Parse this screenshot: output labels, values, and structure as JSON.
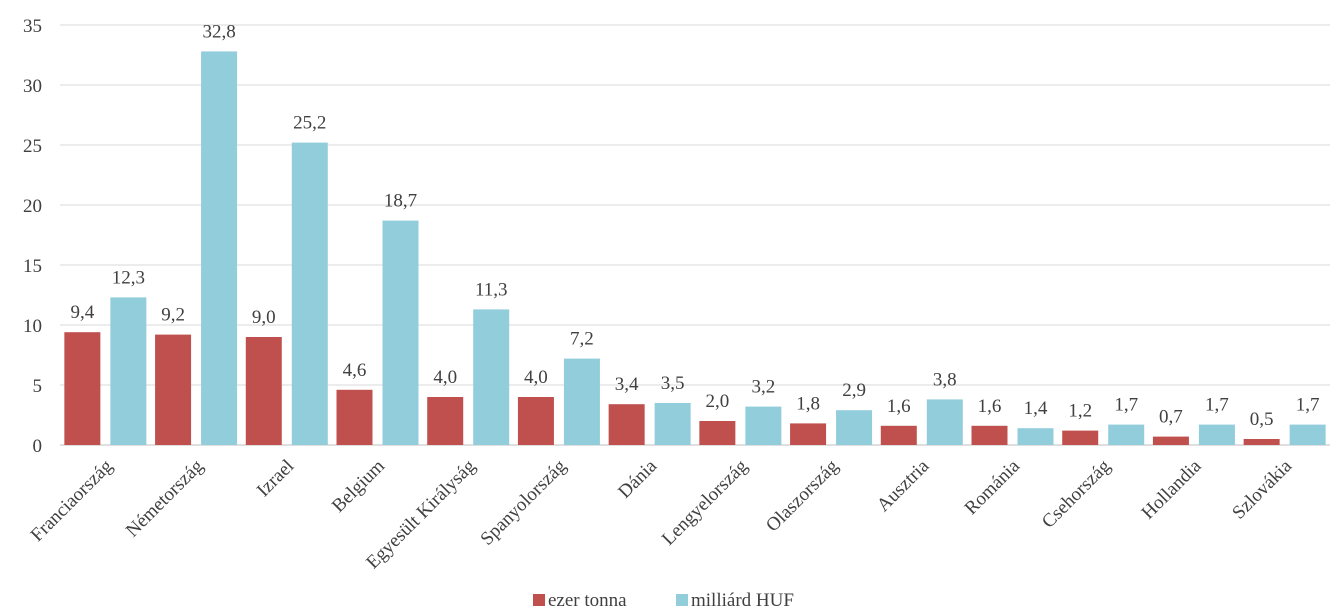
{
  "chart_data": {
    "type": "bar",
    "categories": [
      "Franciaország",
      "Németország",
      "Izrael",
      "Belgium",
      "Egyesült Királyság",
      "Spanyolország",
      "Dánia",
      "Lengyelország",
      "Olaszország",
      "Ausztria",
      "Románia",
      "Csehország",
      "Hollandia",
      "Szlovákia"
    ],
    "series": [
      {
        "name": "ezer tonna",
        "color": "#c0504d",
        "values": [
          9.4,
          9.2,
          9.0,
          4.6,
          4.0,
          4.0,
          3.4,
          2.0,
          1.8,
          1.6,
          1.6,
          1.2,
          0.7,
          0.5
        ],
        "labels": [
          "9,4",
          "9,2",
          "9,0",
          "4,6",
          "4,0",
          "4,0",
          "3,4",
          "2,0",
          "1,8",
          "1,6",
          "1,6",
          "1,2",
          "0,7",
          "0,5"
        ]
      },
      {
        "name": "milliárd HUF",
        "color": "#92cddc",
        "values": [
          12.3,
          32.8,
          25.2,
          18.7,
          11.3,
          7.2,
          3.5,
          3.2,
          2.9,
          3.8,
          1.4,
          1.7,
          1.7,
          1.7
        ],
        "labels": [
          "12,3",
          "32,8",
          "25,2",
          "18,7",
          "11,3",
          "7,2",
          "3,5",
          "3,2",
          "2,9",
          "3,8",
          "1,4",
          "1,7",
          "1,7",
          "1,7"
        ]
      }
    ],
    "ylim": [
      0,
      35
    ],
    "yticks": [
      0,
      5,
      10,
      15,
      20,
      25,
      30,
      35
    ],
    "grid": true,
    "legend_position": "bottom"
  }
}
